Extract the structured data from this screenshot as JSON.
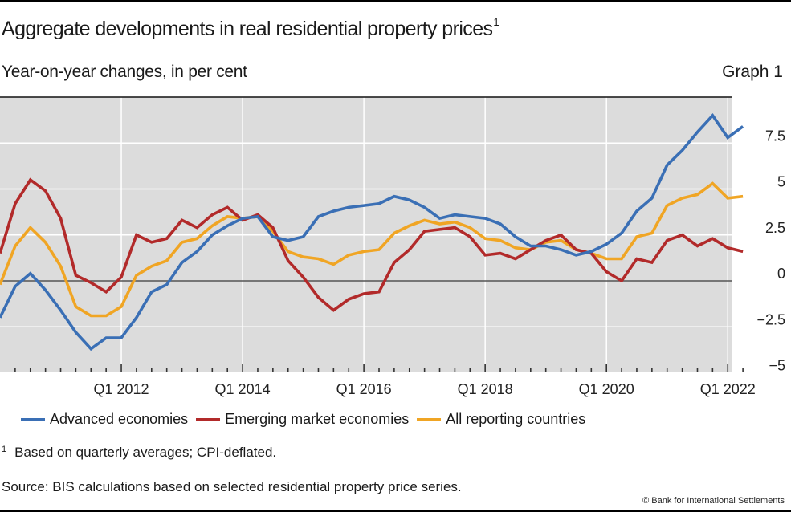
{
  "header": {
    "title": "Aggregate developments in real residential property prices",
    "title_footnote_marker": "1",
    "subtitle": "Year-on-year changes, in per cent",
    "graph_number": "Graph 1"
  },
  "colors": {
    "advanced": "#3a6fb5",
    "emerging": "#b22a2a",
    "all": "#f0a524",
    "plot_background": "#dcdcdc",
    "gridline": "#ffffff",
    "zero_line": "#555555"
  },
  "chart_data": {
    "type": "line",
    "title": "Aggregate developments in real residential property prices",
    "subtitle": "Year-on-year changes, in per cent",
    "xlabel": "",
    "ylabel": "",
    "x_start": "Q1 2010",
    "x_end": "Q2 2022",
    "x": [
      "Q1 2010",
      "Q2 2010",
      "Q3 2010",
      "Q4 2010",
      "Q1 2011",
      "Q2 2011",
      "Q3 2011",
      "Q4 2011",
      "Q1 2012",
      "Q2 2012",
      "Q3 2012",
      "Q4 2012",
      "Q1 2013",
      "Q2 2013",
      "Q3 2013",
      "Q4 2013",
      "Q1 2014",
      "Q2 2014",
      "Q3 2014",
      "Q4 2014",
      "Q1 2015",
      "Q2 2015",
      "Q3 2015",
      "Q4 2015",
      "Q1 2016",
      "Q2 2016",
      "Q3 2016",
      "Q4 2016",
      "Q1 2017",
      "Q2 2017",
      "Q3 2017",
      "Q4 2017",
      "Q1 2018",
      "Q2 2018",
      "Q3 2018",
      "Q4 2018",
      "Q1 2019",
      "Q2 2019",
      "Q3 2019",
      "Q4 2019",
      "Q1 2020",
      "Q2 2020",
      "Q3 2020",
      "Q4 2020",
      "Q1 2021",
      "Q2 2021",
      "Q3 2021",
      "Q4 2021",
      "Q1 2022",
      "Q2 2022"
    ],
    "x_tick_labels": [
      "Q1 2012",
      "Q1 2014",
      "Q1 2016",
      "Q1 2018",
      "Q1 2020",
      "Q1 2022"
    ],
    "y_ticks": [
      -5,
      -2.5,
      0,
      2.5,
      5,
      7.5
    ],
    "y_tick_labels": [
      "−5",
      "−2.5",
      "0",
      "2.5",
      "5",
      "7.5"
    ],
    "ylim": [
      -5,
      10
    ],
    "grid": true,
    "y_axis_side": "right",
    "legend_position": "bottom",
    "series": [
      {
        "name": "Advanced economies",
        "color_key": "advanced",
        "values": [
          -2.0,
          -0.3,
          0.4,
          -0.5,
          -1.6,
          -2.8,
          -3.7,
          -3.1,
          -3.1,
          -2.0,
          -0.6,
          -0.2,
          1.0,
          1.6,
          2.5,
          3.0,
          3.4,
          3.5,
          2.4,
          2.2,
          2.4,
          3.5,
          3.8,
          4.0,
          4.1,
          4.2,
          4.6,
          4.4,
          4.0,
          3.4,
          3.6,
          3.5,
          3.4,
          3.1,
          2.4,
          1.9,
          1.9,
          1.7,
          1.4,
          1.6,
          2.0,
          2.6,
          3.8,
          4.5,
          6.3,
          7.1,
          8.1,
          9.0,
          7.8,
          8.4
        ]
      },
      {
        "name": "Emerging market economies",
        "color_key": "emerging",
        "values": [
          1.5,
          4.2,
          5.5,
          4.9,
          3.4,
          0.3,
          -0.1,
          -0.6,
          0.2,
          2.5,
          2.1,
          2.3,
          3.3,
          2.9,
          3.6,
          4.0,
          3.3,
          3.6,
          2.9,
          1.1,
          0.2,
          -0.9,
          -1.6,
          -1.0,
          -0.7,
          -0.6,
          1.0,
          1.7,
          2.7,
          2.8,
          2.9,
          2.4,
          1.4,
          1.5,
          1.2,
          1.7,
          2.2,
          2.5,
          1.7,
          1.5,
          0.5,
          0.0,
          1.2,
          1.0,
          2.2,
          2.5,
          1.9,
          2.3,
          1.8,
          1.6
        ]
      },
      {
        "name": "All reporting countries",
        "color_key": "all",
        "values": [
          -0.2,
          1.9,
          2.9,
          2.1,
          0.8,
          -1.4,
          -1.9,
          -1.9,
          -1.4,
          0.3,
          0.8,
          1.1,
          2.1,
          2.3,
          3.0,
          3.5,
          3.4,
          3.5,
          2.7,
          1.6,
          1.3,
          1.2,
          0.9,
          1.4,
          1.6,
          1.7,
          2.6,
          3.0,
          3.3,
          3.1,
          3.2,
          2.9,
          2.3,
          2.2,
          1.8,
          1.7,
          2.1,
          2.2,
          1.7,
          1.5,
          1.2,
          1.2,
          2.4,
          2.6,
          4.1,
          4.5,
          4.7,
          5.3,
          4.5,
          4.6
        ]
      }
    ]
  },
  "legend": {
    "items": [
      {
        "label": "Advanced economies",
        "color_key": "advanced"
      },
      {
        "label": "Emerging market economies",
        "color_key": "emerging"
      },
      {
        "label": "All reporting countries",
        "color_key": "all"
      }
    ]
  },
  "footer": {
    "footnote_marker": "1",
    "footnote": "Based on quarterly averages; CPI-deflated.",
    "source": "Source: BIS calculations based on selected residential property price series.",
    "copyright": "© Bank for International Settlements"
  }
}
